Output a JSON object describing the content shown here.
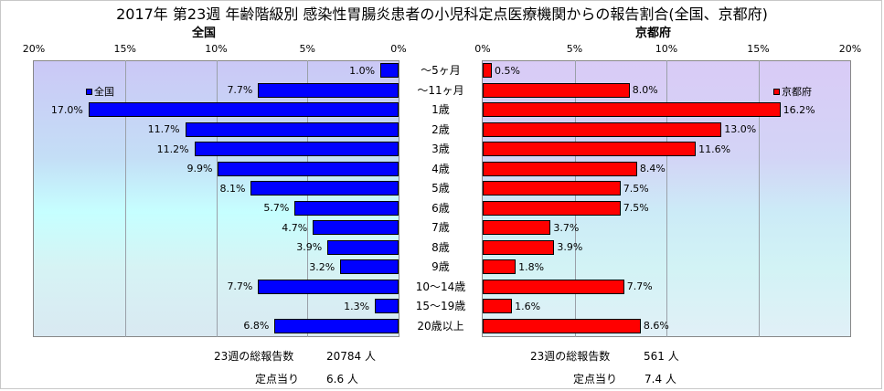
{
  "title": "2017年 第23週 年齢階級別 感染性胃腸炎患者の小児科定点医療機関からの報告割合(全国、京都府)",
  "chart_data": [
    {
      "type": "bar",
      "orientation": "horizontal",
      "title": "全国",
      "legend": "全国",
      "legend_position": "top-left",
      "color": "#0000ff",
      "x_reversed": true,
      "xlim": [
        0,
        20
      ],
      "ticks": [
        "20%",
        "15%",
        "10%",
        "5%",
        "0%"
      ],
      "grid": true,
      "categories": [
        "～5ヶ月",
        "～11ヶ月",
        "1歳",
        "2歳",
        "3歳",
        "4歳",
        "5歳",
        "6歳",
        "7歳",
        "8歳",
        "9歳",
        "10～14歳",
        "15～19歳",
        "20歳以上"
      ],
      "values": [
        1.0,
        7.7,
        17.0,
        11.7,
        11.2,
        9.9,
        8.1,
        5.7,
        4.7,
        3.9,
        3.2,
        7.7,
        1.3,
        6.8
      ],
      "labels": [
        "1.0%",
        "7.7%",
        "17.0%",
        "11.7%",
        "11.2%",
        "9.9%",
        "8.1%",
        "5.7%",
        "4.7%",
        "3.9%",
        "3.2%",
        "7.7%",
        "1.3%",
        "6.8%"
      ]
    },
    {
      "type": "bar",
      "orientation": "horizontal",
      "title": "京都府",
      "legend": "京都府",
      "legend_position": "top-right",
      "color": "#ff0000",
      "xlim": [
        0,
        20
      ],
      "ticks": [
        "0%",
        "5%",
        "10%",
        "15%",
        "20%"
      ],
      "grid": true,
      "categories": [
        "～5ヶ月",
        "～11ヶ月",
        "1歳",
        "2歳",
        "3歳",
        "4歳",
        "5歳",
        "6歳",
        "7歳",
        "8歳",
        "9歳",
        "10～14歳",
        "15～19歳",
        "20歳以上"
      ],
      "values": [
        0.5,
        8.0,
        16.2,
        13.0,
        11.6,
        8.4,
        7.5,
        7.5,
        3.7,
        3.9,
        1.8,
        7.7,
        1.6,
        8.6
      ],
      "labels": [
        "0.5%",
        "8.0%",
        "16.2%",
        "13.0%",
        "11.6%",
        "8.4%",
        "7.5%",
        "7.5%",
        "3.7%",
        "3.9%",
        "1.8%",
        "7.7%",
        "1.6%",
        "8.6%"
      ]
    }
  ],
  "footer": {
    "national_total_label": "23週の総報告数",
    "national_total_value": "20784 人",
    "national_per_label": "定点当り",
    "national_per_value": "6.6 人",
    "kyoto_total_label": "23週の総報告数",
    "kyoto_total_value": "561 人",
    "kyoto_per_label": "定点当り",
    "kyoto_per_value": "7.4 人"
  }
}
